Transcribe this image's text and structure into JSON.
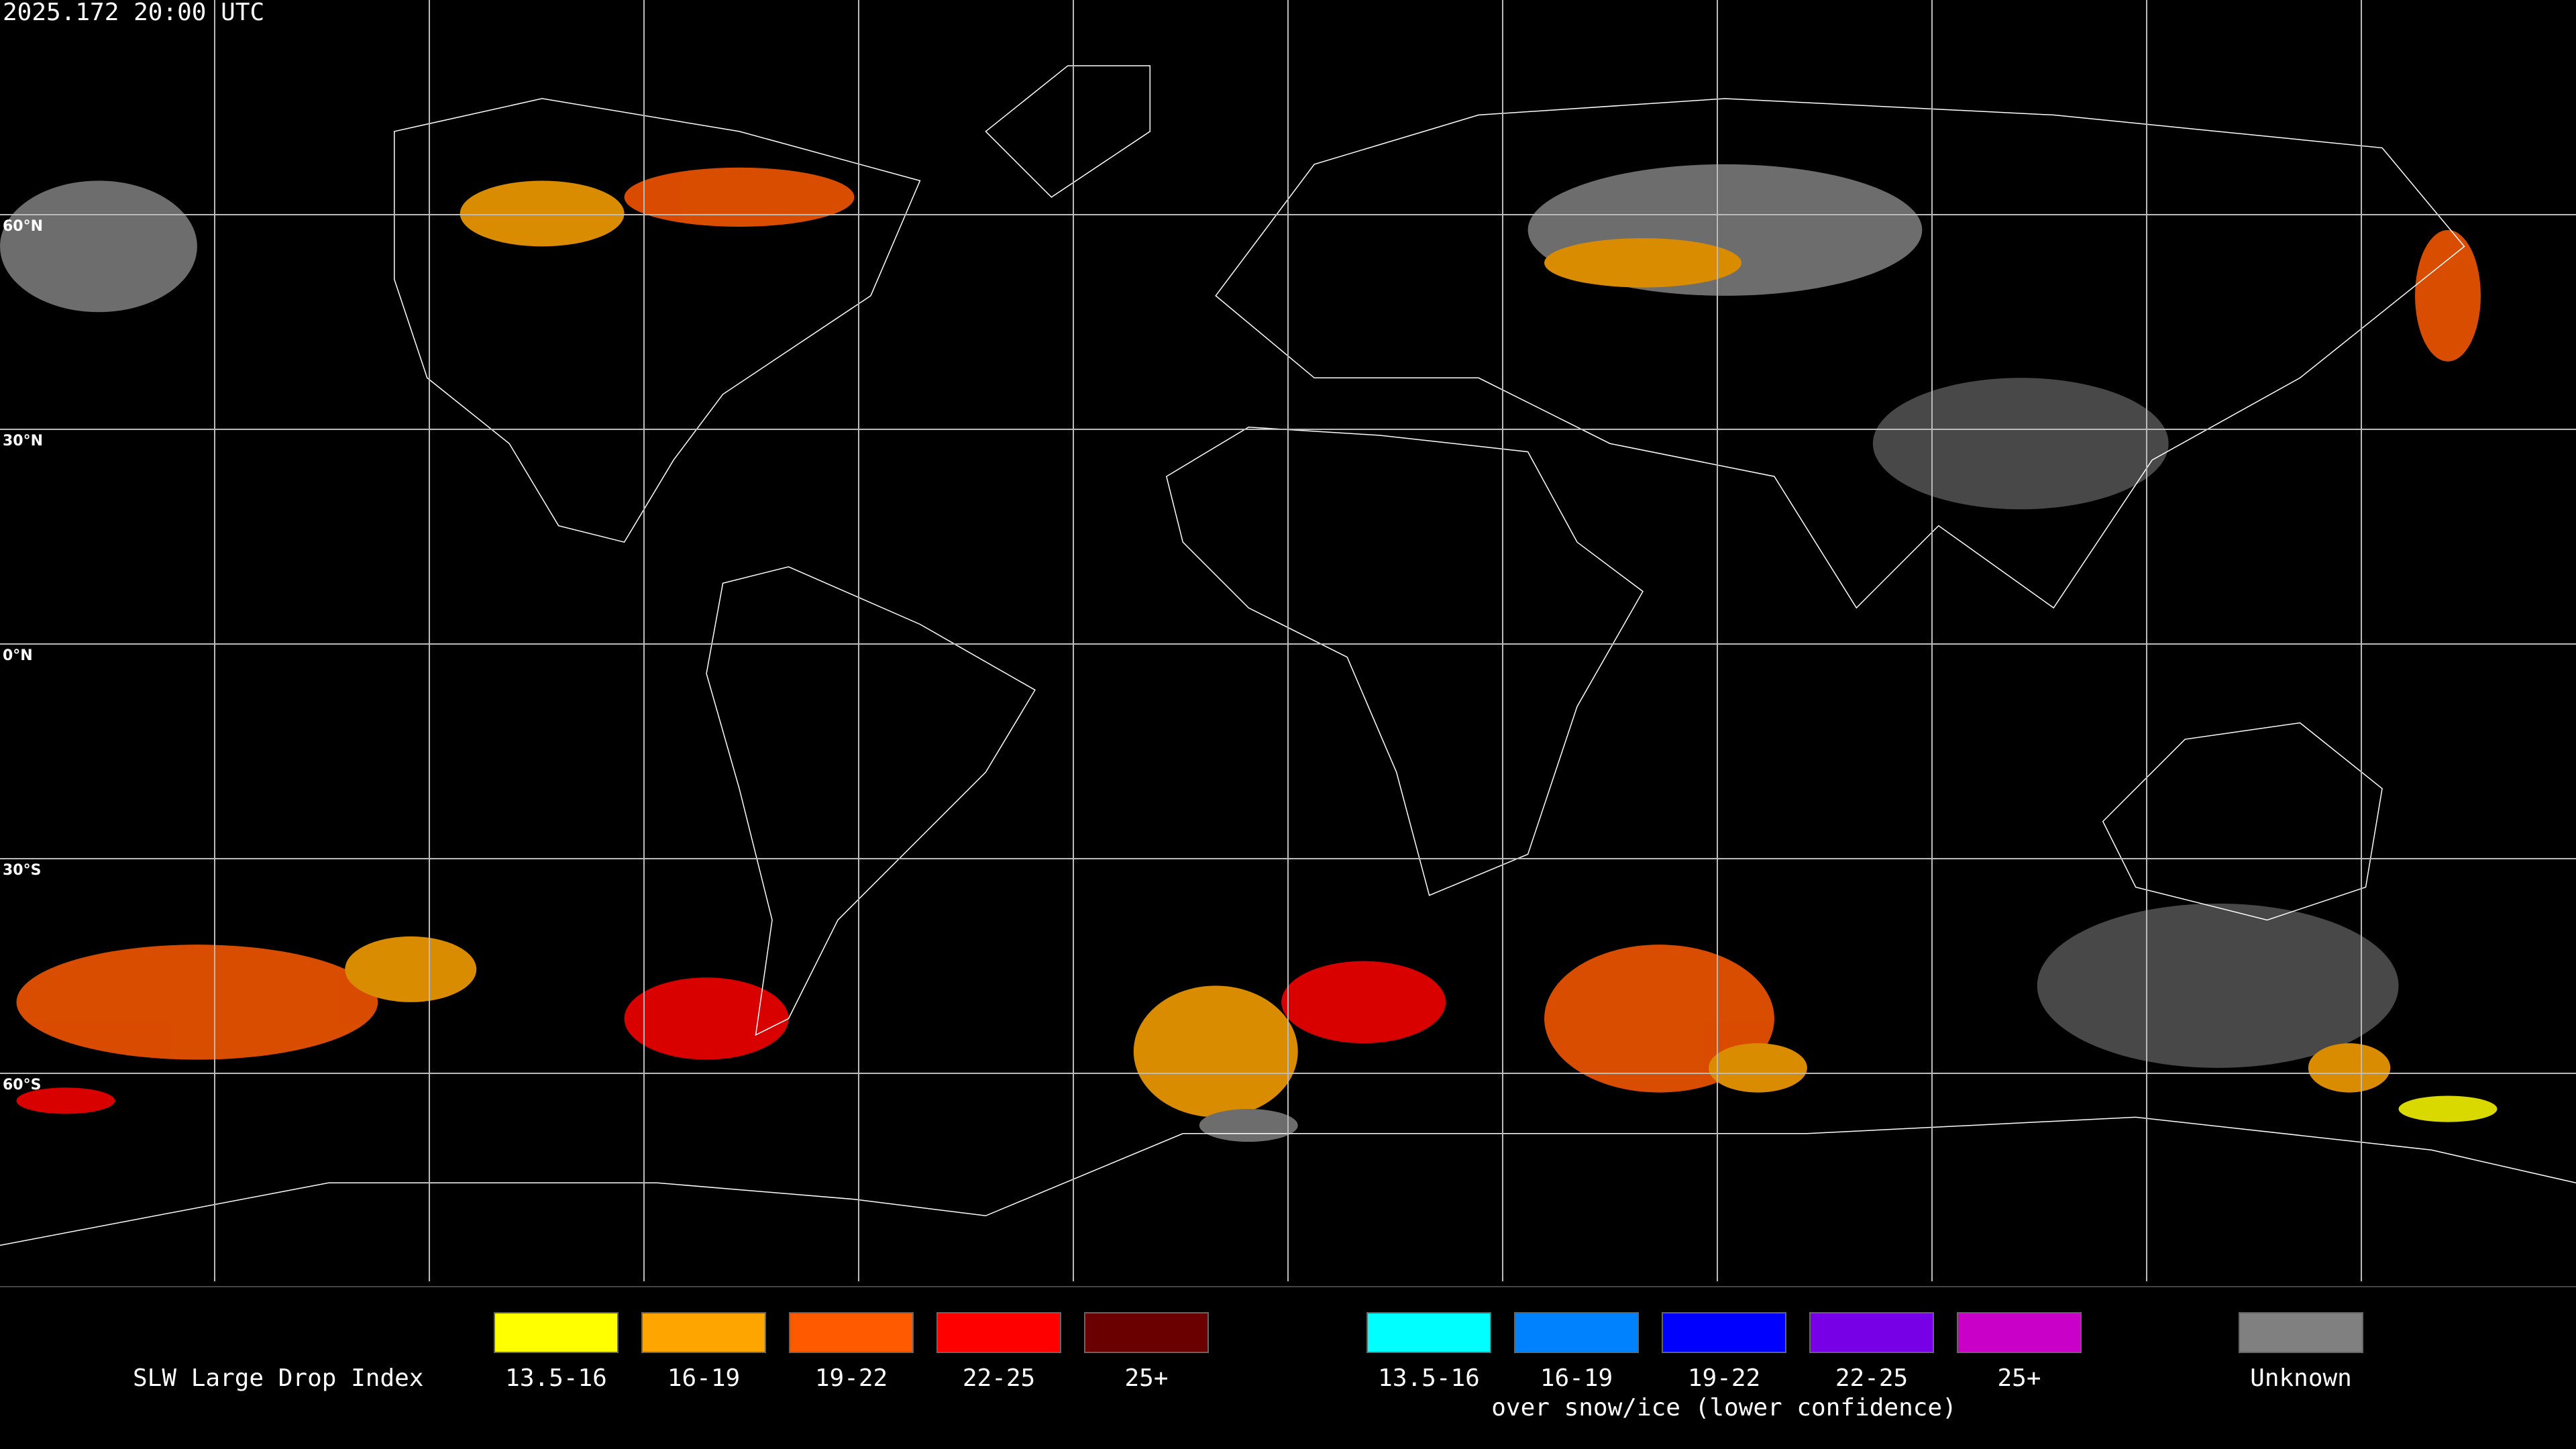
{
  "timestamp": "2025.172 20:00 UTC",
  "map": {
    "lat_labels": [
      "60°N",
      "30°N",
      "0°N",
      "30°S",
      "60°S"
    ]
  },
  "legend": {
    "title": "SLW Large Drop Index",
    "groups": [
      {
        "items": [
          {
            "label": "13.5-16",
            "color": "#ffff00"
          },
          {
            "label": "16-19",
            "color": "#ffa500"
          },
          {
            "label": "19-22",
            "color": "#ff5a00"
          },
          {
            "label": "22-25",
            "color": "#ff0000"
          },
          {
            "label": "25+",
            "color": "#6b0000"
          }
        ]
      },
      {
        "items": [
          {
            "label": "13.5-16",
            "color": "#00ffff"
          },
          {
            "label": "16-19",
            "color": "#0082ff"
          },
          {
            "label": "19-22",
            "color": "#0000ff"
          },
          {
            "label": "22-25",
            "color": "#7800e6"
          },
          {
            "label": "25+",
            "color": "#c800c8"
          }
        ],
        "caption": "over snow/ice (lower confidence)"
      },
      {
        "items": [
          {
            "label": "Unknown",
            "color": "#808080"
          }
        ]
      }
    ]
  }
}
